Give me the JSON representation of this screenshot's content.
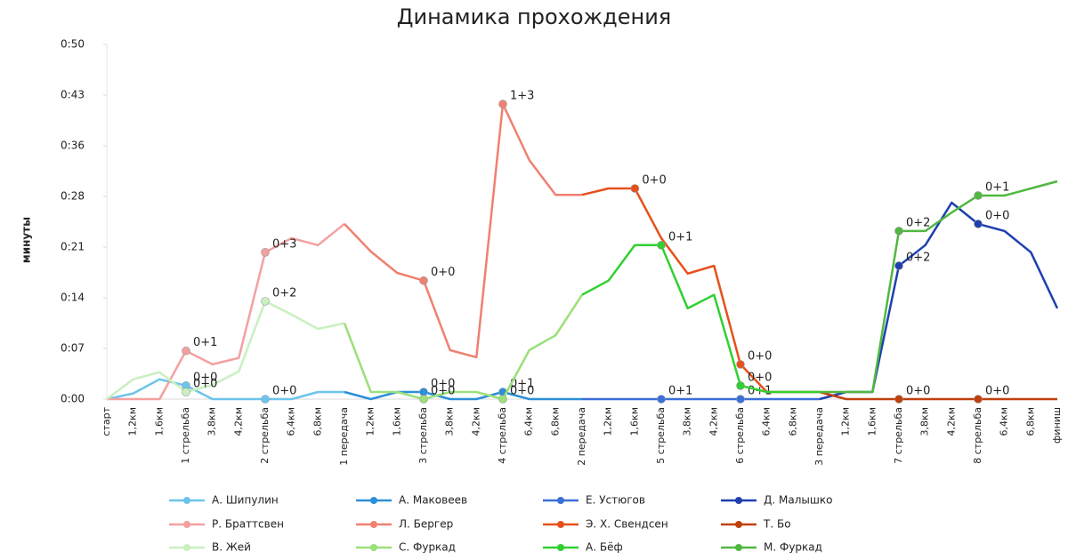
{
  "chart_data": {
    "type": "line",
    "title": "Динамика прохождения",
    "y_label": "минуты",
    "categories": [
      "старт",
      "1,2км",
      "1,6км",
      "1 стрельба",
      "3,8км",
      "4,2км",
      "2 стрельба",
      "6,4км",
      "6,8км",
      "1 передача",
      "1,2км",
      "1,6км",
      "3 стрельба",
      "3,8км",
      "4,2км",
      "4 стрельба",
      "6,4км",
      "6,8км",
      "2 передача",
      "1,2км",
      "1,6км",
      "5 стрельба",
      "3,8км",
      "4,2км",
      "6 стрельба",
      "6,4км",
      "6,8км",
      "3 передача",
      "1,2км",
      "1,6км",
      "7 стрельба",
      "3,8км",
      "4,2км",
      "8 стрельба",
      "6,4км",
      "6,8км",
      "финиш"
    ],
    "ylim": [
      0,
      50
    ],
    "yticks": [
      {
        "value": 0,
        "label": "0:00"
      },
      {
        "value": 7.14,
        "label": "0:07"
      },
      {
        "value": 14.29,
        "label": "0:14"
      },
      {
        "value": 21.43,
        "label": "0:21"
      },
      {
        "value": 28.57,
        "label": "0:28"
      },
      {
        "value": 35.71,
        "label": "0:36"
      },
      {
        "value": 42.86,
        "label": "0:43"
      },
      {
        "value": 50,
        "label": "0:50"
      }
    ],
    "grid": false,
    "legend": "bottom",
    "series": [
      {
        "name": "А. Шипулин",
        "color": "#6cc4ec",
        "values": [
          0,
          0.8,
          2.8,
          1.9,
          0,
          0,
          0,
          0,
          1,
          1,
          null,
          null,
          null,
          null,
          null,
          null,
          null,
          null,
          null,
          null,
          null,
          null,
          null,
          null,
          null,
          null,
          null,
          null,
          null,
          null,
          null,
          null,
          null,
          null,
          null,
          null,
          null
        ],
        "shootings": [
          {
            "index": 3,
            "label": "0+0"
          },
          {
            "index": 6,
            "label": "0+0"
          }
        ]
      },
      {
        "name": "А. Маковеев",
        "color": "#2c8fd8",
        "values": [
          null,
          null,
          null,
          null,
          null,
          null,
          null,
          null,
          null,
          1,
          0,
          1,
          1,
          0,
          0,
          1,
          0,
          0,
          0,
          null,
          null,
          null,
          null,
          null,
          null,
          null,
          null,
          null,
          null,
          null,
          null,
          null,
          null,
          null,
          null,
          null,
          null
        ],
        "shootings": [
          {
            "index": 12,
            "label": "0+0"
          },
          {
            "index": 15,
            "label": "0+1"
          }
        ]
      },
      {
        "name": "Е. Устюгов",
        "color": "#3a6fd8",
        "values": [
          null,
          null,
          null,
          null,
          null,
          null,
          null,
          null,
          null,
          null,
          null,
          null,
          null,
          null,
          null,
          null,
          null,
          null,
          0,
          0,
          0,
          0,
          0,
          0,
          0,
          0,
          0,
          0,
          null,
          null,
          null,
          null,
          null,
          null,
          null,
          null,
          null
        ],
        "shootings": [
          {
            "index": 21,
            "label": "0+1"
          },
          {
            "index": 24,
            "label": "0+1"
          }
        ]
      },
      {
        "name": "Д. Малышко",
        "color": "#1f3fb0",
        "values": [
          null,
          null,
          null,
          null,
          null,
          null,
          null,
          null,
          null,
          null,
          null,
          null,
          null,
          null,
          null,
          null,
          null,
          null,
          null,
          null,
          null,
          null,
          null,
          null,
          null,
          null,
          null,
          0,
          1,
          1,
          18.8,
          21.7,
          27.7,
          24.7,
          23.7,
          20.7,
          12.8
        ],
        "shootings": [
          {
            "index": 30,
            "label": "0+2"
          },
          {
            "index": 33,
            "label": "0+0"
          }
        ]
      },
      {
        "name": "Р. Браттсвен",
        "color": "#f4a0a0",
        "values": [
          0,
          0,
          0,
          6.8,
          4.9,
          5.8,
          20.7,
          22.7,
          21.7,
          24.7,
          null,
          null,
          null,
          null,
          null,
          null,
          null,
          null,
          null,
          null,
          null,
          null,
          null,
          null,
          null,
          null,
          null,
          null,
          null,
          null,
          null,
          null,
          null,
          null,
          null,
          null,
          null
        ],
        "shootings": [
          {
            "index": 3,
            "label": "0+1"
          },
          {
            "index": 6,
            "label": "0+3"
          }
        ]
      },
      {
        "name": "Л. Бергер",
        "color": "#f08070",
        "values": [
          null,
          null,
          null,
          null,
          null,
          null,
          null,
          null,
          null,
          24.7,
          20.8,
          17.8,
          16.7,
          6.9,
          5.9,
          41.6,
          33.7,
          28.8,
          28.8,
          null,
          null,
          null,
          null,
          null,
          null,
          null,
          null,
          null,
          null,
          null,
          null,
          null,
          null,
          null,
          null,
          null,
          null
        ],
        "shootings": [
          {
            "index": 12,
            "label": "0+0"
          },
          {
            "index": 15,
            "label": "1+3"
          }
        ]
      },
      {
        "name": "Э. Х. Свендсен",
        "color": "#e8501c",
        "values": [
          null,
          null,
          null,
          null,
          null,
          null,
          null,
          null,
          null,
          null,
          null,
          null,
          null,
          null,
          null,
          null,
          null,
          null,
          28.8,
          29.7,
          29.7,
          22.7,
          17.7,
          18.8,
          4.9,
          1,
          1,
          1,
          null,
          null,
          null,
          null,
          null,
          null,
          null,
          null,
          null
        ],
        "shootings": [
          {
            "index": 20,
            "label": "0+0"
          },
          {
            "index": 24,
            "label": "0+0"
          }
        ]
      },
      {
        "name": "Т. Бо",
        "color": "#c0400c",
        "values": [
          null,
          null,
          null,
          null,
          null,
          null,
          null,
          null,
          null,
          null,
          null,
          null,
          null,
          null,
          null,
          null,
          null,
          null,
          null,
          null,
          null,
          null,
          null,
          null,
          null,
          null,
          null,
          1,
          0,
          0,
          0,
          0,
          0,
          0,
          0,
          0,
          0
        ],
        "shootings": [
          {
            "index": 30,
            "label": "0+0"
          },
          {
            "index": 33,
            "label": "0+0"
          }
        ]
      },
      {
        "name": "В. Жей",
        "color": "#c8f0c0",
        "values": [
          0,
          2.8,
          3.8,
          1.0,
          2.0,
          3.9,
          13.8,
          11.9,
          9.9,
          10.7,
          null,
          null,
          null,
          null,
          null,
          null,
          null,
          null,
          null,
          null,
          null,
          null,
          null,
          null,
          null,
          null,
          null,
          null,
          null,
          null,
          null,
          null,
          null,
          null,
          null,
          null,
          null
        ],
        "shootings": [
          {
            "index": 3,
            "label": "0+0"
          },
          {
            "index": 6,
            "label": "0+2"
          }
        ]
      },
      {
        "name": "С. Фуркад",
        "color": "#9be07a",
        "values": [
          null,
          null,
          null,
          null,
          null,
          null,
          null,
          null,
          null,
          10.7,
          1,
          1,
          0,
          1,
          1,
          0,
          6.9,
          9.0,
          14.7,
          null,
          null,
          null,
          null,
          null,
          null,
          null,
          null,
          null,
          null,
          null,
          null,
          null,
          null,
          null,
          null,
          null,
          null
        ],
        "shootings": [
          {
            "index": 12,
            "label": "0+0"
          },
          {
            "index": 15,
            "label": "0+0"
          }
        ]
      },
      {
        "name": "А. Бёф",
        "color": "#30d030",
        "values": [
          null,
          null,
          null,
          null,
          null,
          null,
          null,
          null,
          null,
          null,
          null,
          null,
          null,
          null,
          null,
          null,
          null,
          null,
          14.7,
          16.7,
          21.7,
          21.7,
          12.8,
          14.7,
          1.9,
          1,
          1,
          1,
          null,
          null,
          null,
          null,
          null,
          null,
          null,
          null,
          null
        ],
        "shootings": [
          {
            "index": 21,
            "label": "0+1"
          },
          {
            "index": 24,
            "label": "0+0"
          }
        ]
      },
      {
        "name": "М. Фуркад",
        "color": "#50b840",
        "values": [
          null,
          null,
          null,
          null,
          null,
          null,
          null,
          null,
          null,
          null,
          null,
          null,
          null,
          null,
          null,
          null,
          null,
          null,
          null,
          null,
          null,
          null,
          null,
          null,
          null,
          null,
          null,
          1,
          1,
          1,
          23.7,
          23.7,
          26.3,
          28.7,
          28.7,
          29.7,
          30.7
        ],
        "shootings": [
          {
            "index": 30,
            "label": "0+2"
          },
          {
            "index": 33,
            "label": "0+1"
          }
        ]
      }
    ]
  }
}
